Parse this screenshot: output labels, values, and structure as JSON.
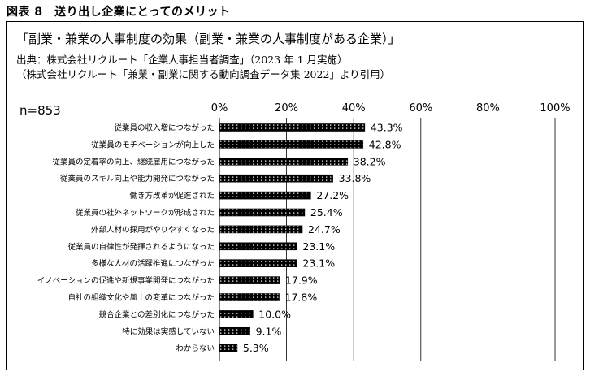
{
  "figure_label": "図表 8　送り出し企業にとってのメリット",
  "chart_data": {
    "type": "bar",
    "orientation": "horizontal",
    "title": "「副業・兼業の人事制度の効果（副業・兼業の人事制度がある企業）」",
    "source": "出典：株式会社リクルート「企業人事担当者調査」（2023 年 1 月実施）",
    "citation": "（株式会社リクルート「兼業・副業に関する動向調査データ集 2022」より引用）",
    "sample_size": "n=853",
    "xlim": [
      0,
      100
    ],
    "xticks": [
      0,
      20,
      40,
      60,
      80,
      100
    ],
    "xtick_labels": [
      "0%",
      "20%",
      "40%",
      "60%",
      "80%",
      "100%"
    ],
    "grid": true,
    "bar_color": "#000000",
    "bar_pattern": "white-dotted",
    "categories": [
      "従業員の収入増につながった",
      "従業員のモチベーションが向上した",
      "従業員の定着率の向上、継続雇用につながった",
      "従業員のスキル向上や能力開発につながった",
      "働き方改革が促進された",
      "従業員の社外ネットワークが形成された",
      "外部人材の採用がやりやすくなった",
      "従業員の自律性が発揮されるようになった",
      "多様な人材の活躍推進につながった",
      "イノベーションの促進や新規事業開発につながった",
      "自社の組織文化や風土の変革につながった",
      "競合企業との差別化につながった",
      "特に効果は実感していない",
      "わからない"
    ],
    "values": [
      43.3,
      42.8,
      38.2,
      33.8,
      27.2,
      25.4,
      24.7,
      23.1,
      23.1,
      17.9,
      17.8,
      10.0,
      9.1,
      5.3
    ],
    "value_labels": [
      "43.3%",
      "42.8%",
      "38.2%",
      "33.8%",
      "27.2%",
      "25.4%",
      "24.7%",
      "23.1%",
      "23.1%",
      "17.9%",
      "17.8%",
      "10.0%",
      "9.1%",
      "5.3%"
    ]
  }
}
